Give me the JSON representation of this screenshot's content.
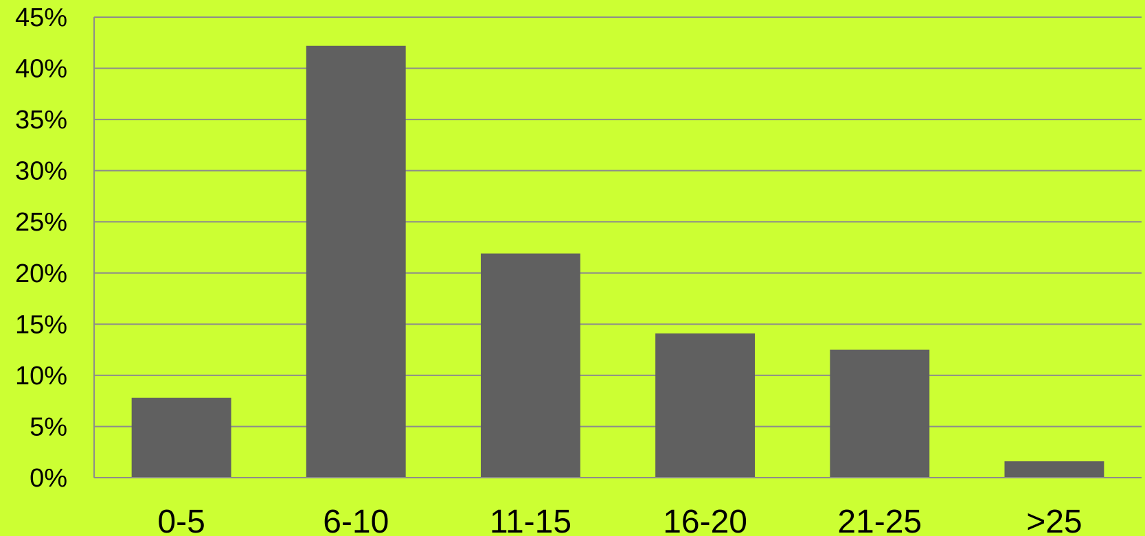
{
  "colors": {
    "background": "#CCFF33",
    "bar": "#606060",
    "grid": "#8C8C8C",
    "axis": "#8C8C8C",
    "text": "#000000"
  },
  "chart_data": {
    "type": "bar",
    "categories": [
      "0-5",
      "6-10",
      "11-15",
      "16-20",
      "21-25",
      ">25"
    ],
    "series": [
      {
        "values": [
          7.8,
          42.2,
          21.9,
          14.1,
          12.5,
          1.6
        ]
      }
    ],
    "ylim": [
      0,
      45
    ],
    "yticks": [
      0,
      5,
      10,
      15,
      20,
      25,
      30,
      35,
      40,
      45
    ],
    "ytick_labels": [
      "0%",
      "5%",
      "10%",
      "15%",
      "20%",
      "25%",
      "30%",
      "35%",
      "40%",
      "45%"
    ],
    "grid": true,
    "legend": "none",
    "title": "",
    "xlabel": "",
    "ylabel": ""
  }
}
